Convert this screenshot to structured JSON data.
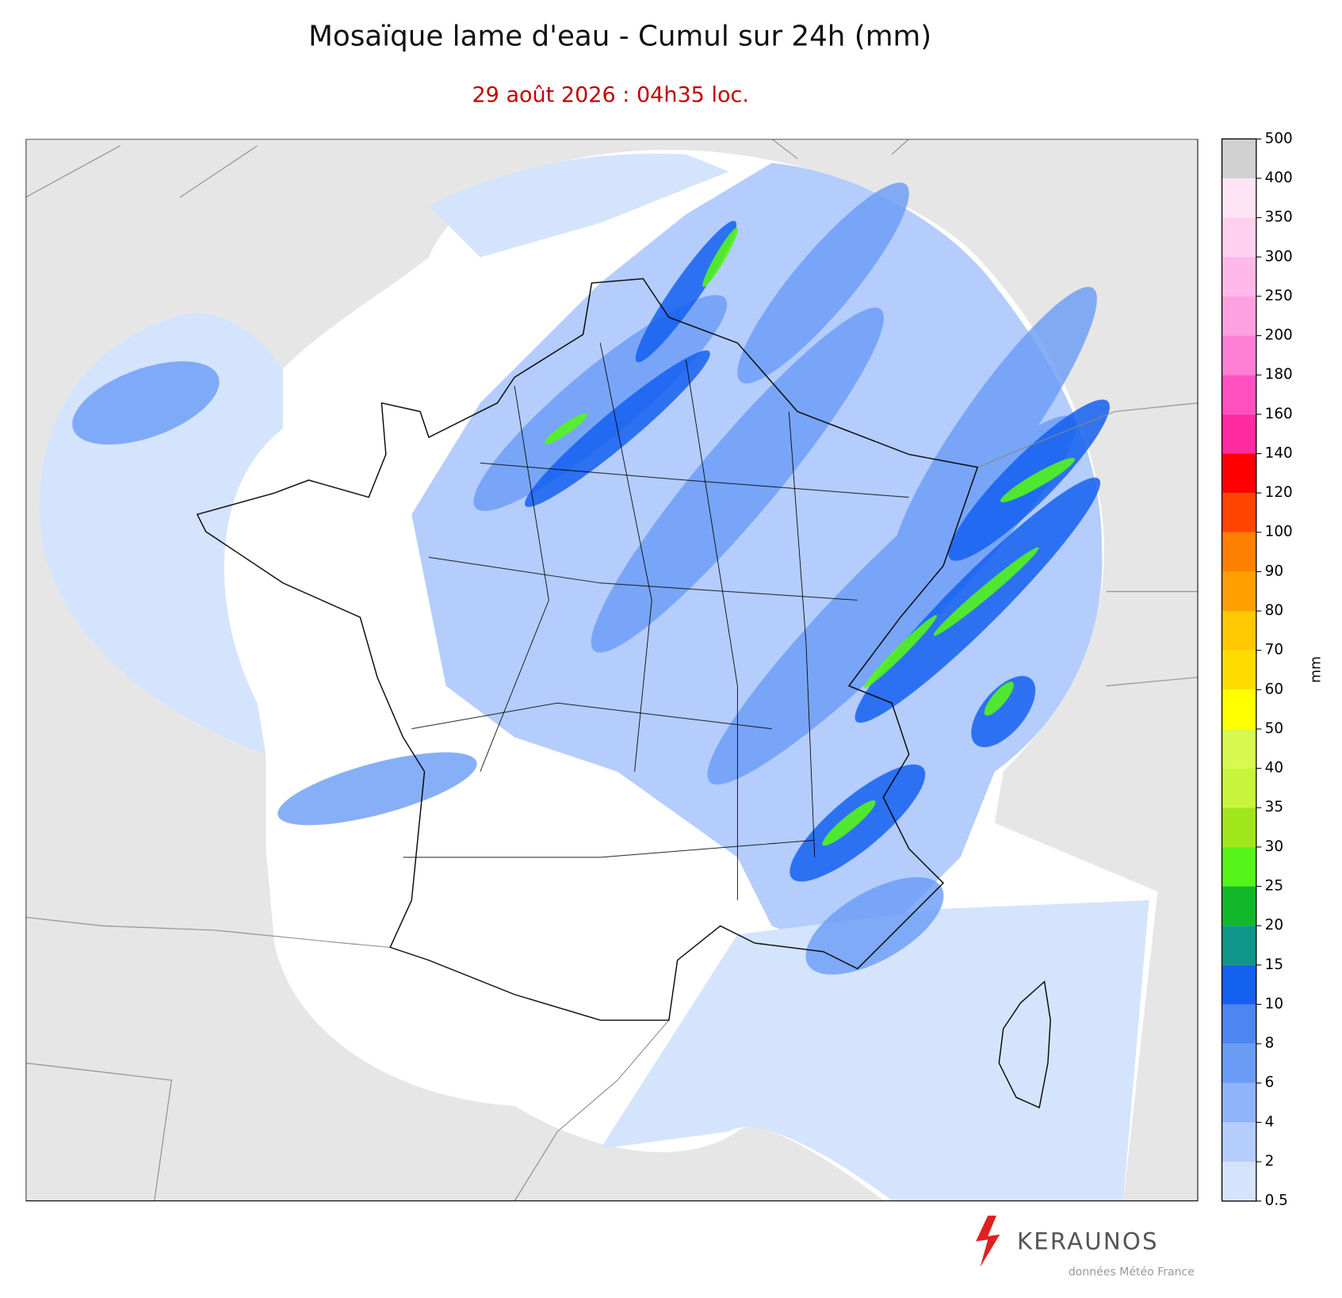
{
  "title": "Mosaïque lame d'eau - Cumul sur 24h (mm)",
  "subtitle": "29 août 2026 : 04h35 loc.",
  "colorbar": {
    "label": "mm",
    "ticks": [
      0.5,
      2,
      4,
      6,
      8,
      10,
      15,
      20,
      25,
      30,
      35,
      40,
      50,
      60,
      70,
      80,
      90,
      100,
      120,
      140,
      160,
      180,
      200,
      250,
      300,
      350,
      400,
      500
    ],
    "colors": [
      "#d5e4fd",
      "#b4cdfc",
      "#8fb4fa",
      "#6a9cf6",
      "#4d86f0",
      "#1460f0",
      "#0e9688",
      "#11b82a",
      "#55f51a",
      "#a0e61a",
      "#c8f53c",
      "#d8f850",
      "#ffff00",
      "#ffdc00",
      "#ffc800",
      "#ffa000",
      "#ff8000",
      "#ff4400",
      "#ff0000",
      "#ff2aa0",
      "#ff50c0",
      "#ff7fd4",
      "#ffa0e0",
      "#ffb8ea",
      "#ffd0f0",
      "#ffe4f6",
      "#d0d0d0"
    ]
  },
  "logo": {
    "brand": "KERAUNOS",
    "credit": "données Météo France"
  }
}
